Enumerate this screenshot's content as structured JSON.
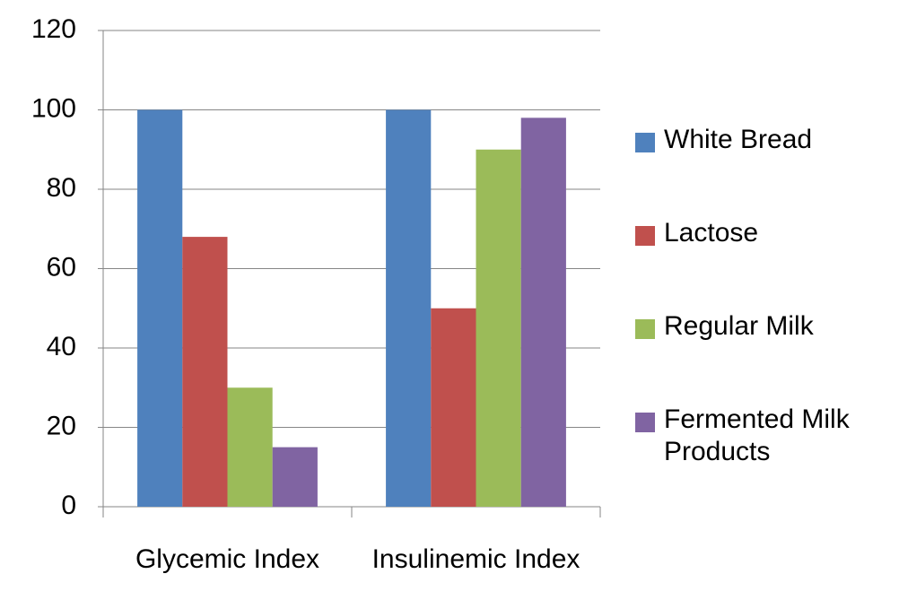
{
  "chart_data": {
    "type": "bar",
    "categories": [
      "Glycemic Index",
      "Insulinemic Index"
    ],
    "series": [
      {
        "name": "White Bread",
        "color": "#4f81bd",
        "values": [
          100,
          100
        ]
      },
      {
        "name": "Lactose",
        "color": "#c0504d",
        "values": [
          68,
          50
        ]
      },
      {
        "name": "Regular Milk",
        "color": "#9bbb59",
        "values": [
          30,
          90
        ]
      },
      {
        "name": "Fermented Milk Products",
        "color": "#8064a2",
        "values": [
          15,
          98
        ]
      }
    ],
    "ylim": [
      0,
      120
    ],
    "yticks": [
      0,
      20,
      40,
      60,
      80,
      100,
      120
    ],
    "grid": true,
    "legend": "right"
  }
}
